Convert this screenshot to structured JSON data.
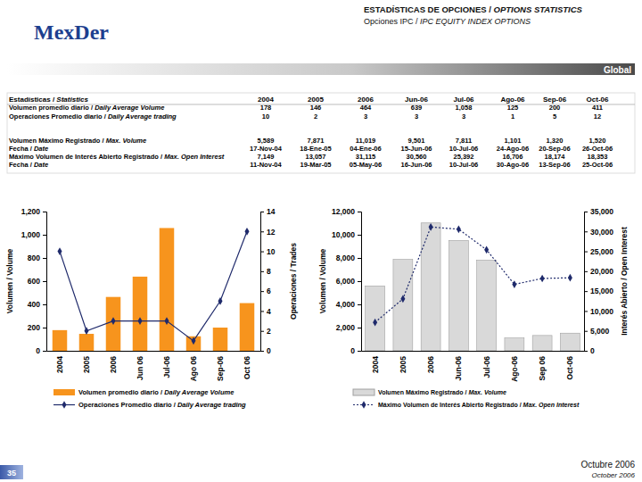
{
  "header": {
    "logo": "MexDer",
    "title": "ESTADÍSTICAS DE OPCIONES / OPTIONS STATISTICS",
    "subtitle": "Opciones IPC / IPC EQUITY INDEX OPTIONS",
    "section": "Global"
  },
  "table": {
    "header": [
      "Estadísticas / Statistics",
      "2004",
      "2005",
      "2006",
      "Jun-06",
      "Jul-06",
      "Ago-06",
      "Sep-06",
      "Oct-06"
    ],
    "rows": [
      [
        "Volumen promedio diario / Daily Average Volume",
        "178",
        "146",
        "464",
        "639",
        "1,058",
        "125",
        "200",
        "411"
      ],
      [
        "Operaciones Promedio diario / Daily Average trading",
        "10",
        "2",
        "3",
        "3",
        "3",
        "1",
        "5",
        "12"
      ],
      [
        "Volumen Máximo Registrado / Max. Volume",
        "5,589",
        "7,871",
        "11,019",
        "9,501",
        "7,811",
        "1,101",
        "1,320",
        "1,520"
      ],
      [
        "Fecha / Date",
        "17-Nov-04",
        "18-Ene-05",
        "04-Ene-06",
        "15-Jun-06",
        "10-Jul-06",
        "24-Ago-06",
        "20-Sep-06",
        "26-Oct-06"
      ],
      [
        "Máximo Volumen de Interés Abierto Registrado / Max. Open Interest",
        "7,149",
        "13,057",
        "31,115",
        "30,560",
        "25,392",
        "16,706",
        "18,174",
        "18,353"
      ],
      [
        "Fecha / Date",
        "11-Nov-04",
        "19-Mar-05",
        "05-May-06",
        "16-Jun-06",
        "10-Jul-06",
        "30-Ago-06",
        "13-Sep-06",
        "25-Oct-06"
      ]
    ]
  },
  "chart_data": [
    {
      "type": "bar",
      "categories": [
        "2004",
        "2005",
        "2006",
        "Jun 06",
        "Jul-06",
        "Ago 06",
        "Sep-06",
        "Oct 06"
      ],
      "series": [
        {
          "name": "Volumen promedio diario / Daily Average Volume",
          "type": "bar",
          "color": "#f7941d",
          "values": [
            178,
            146,
            464,
            639,
            1058,
            125,
            200,
            411
          ]
        },
        {
          "name": "Operaciones Promedio diario / Daily Average trading",
          "type": "line",
          "axis": "y2",
          "color": "#1f2a6b",
          "marker": "diamond",
          "line_style": "solid",
          "values": [
            10,
            2,
            3,
            3,
            3,
            1,
            5,
            12
          ]
        }
      ],
      "y_label": "Volumen / Volume",
      "y2_label": "Operaciones / Trades",
      "ylim": [
        0,
        1200
      ],
      "yticks": [
        0,
        200,
        400,
        600,
        800,
        {
          "value": 1000,
          "label": "1,000"
        },
        {
          "value": 1200,
          "label": "1,200"
        }
      ],
      "y2lim": [
        0,
        14
      ],
      "y2ticks": [
        0,
        2,
        4,
        6,
        8,
        10,
        12,
        14
      ],
      "legend": "bottom"
    },
    {
      "type": "bar",
      "categories": [
        "2004",
        "2005",
        "2006",
        "Jun-06",
        "Jul-06",
        "Ago-06",
        "Sep 06",
        "Oct-06"
      ],
      "series": [
        {
          "name": "Volumen Máximo Registrado / Max. Volume",
          "type": "bar",
          "color": "#d9d9d9",
          "values": [
            5589,
            7871,
            11019,
            9501,
            7811,
            1101,
            1320,
            1520
          ]
        },
        {
          "name": "Máximo Volumen de Interés Abierto Registrado / Max. Open Interest",
          "type": "line",
          "axis": "y2",
          "color": "#1f2a6b",
          "marker": "diamond",
          "line_style": "dotted",
          "values": [
            7149,
            13057,
            31115,
            30560,
            25392,
            16706,
            18174,
            18353
          ]
        }
      ],
      "y_label": "Volumen / Volume",
      "y2_label": "Interés Abierto / Open Interest",
      "ylim": [
        0,
        12000
      ],
      "yticks": [
        0,
        {
          "value": 2000,
          "label": "2,000"
        },
        {
          "value": 4000,
          "label": "4,000"
        },
        {
          "value": 6000,
          "label": "6,000"
        },
        {
          "value": 8000,
          "label": "8,000"
        },
        {
          "value": 10000,
          "label": "10,000"
        },
        {
          "value": 12000,
          "label": "12,000"
        }
      ],
      "y2lim": [
        0,
        35000
      ],
      "y2ticks": [
        0,
        {
          "value": 5000,
          "label": "5,000"
        },
        {
          "value": 10000,
          "label": "10,000"
        },
        {
          "value": 15000,
          "label": "15,000"
        },
        {
          "value": 20000,
          "label": "20,000"
        },
        {
          "value": 25000,
          "label": "25,000"
        },
        {
          "value": 30000,
          "label": "30,000"
        },
        {
          "value": 35000,
          "label": "35,000"
        }
      ],
      "legend": "bottom"
    }
  ],
  "footer": {
    "page": "35",
    "date": "Octubre 2006",
    "date_en": "October 2006"
  }
}
